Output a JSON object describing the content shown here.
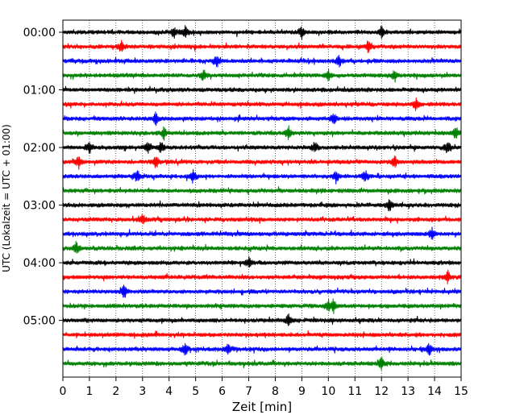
{
  "chart_data": {
    "type": "line",
    "title": "",
    "xlabel": "Zeit  [min]",
    "ylabel": "UTC (Lokalzeit = UTC + 01:00)",
    "xlim": [
      0,
      15
    ],
    "x_ticks": [
      "0",
      "1",
      "2",
      "3",
      "4",
      "5",
      "6",
      "7",
      "8",
      "9",
      "10",
      "11",
      "12",
      "13",
      "14",
      "15"
    ],
    "y_tick_labels": [
      "00:00",
      "01:00",
      "02:00",
      "03:00",
      "04:00",
      "05:00"
    ],
    "row_minutes": 15,
    "rows": 24,
    "grid": "vertical dotted",
    "color_cycle": [
      "#000000",
      "#ff0000",
      "#0000ff",
      "#008000"
    ],
    "traces": [
      {
        "start": "00:00",
        "color": "#000000",
        "events": [
          4.2,
          4.6,
          9.0,
          12.0
        ]
      },
      {
        "start": "00:15",
        "color": "#ff0000",
        "events": [
          2.2,
          11.5
        ]
      },
      {
        "start": "00:30",
        "color": "#0000ff",
        "events": [
          5.8,
          10.4
        ]
      },
      {
        "start": "00:45",
        "color": "#008000",
        "events": [
          5.3,
          10.0,
          12.5
        ]
      },
      {
        "start": "01:00",
        "color": "#000000",
        "events": []
      },
      {
        "start": "01:15",
        "color": "#ff0000",
        "events": [
          13.3
        ]
      },
      {
        "start": "01:30",
        "color": "#0000ff",
        "events": [
          3.5,
          10.2
        ]
      },
      {
        "start": "01:45",
        "color": "#008000",
        "events": [
          3.8,
          8.5,
          14.8
        ]
      },
      {
        "start": "02:00",
        "color": "#000000",
        "events": [
          1.0,
          3.2,
          3.7,
          9.5,
          14.5
        ]
      },
      {
        "start": "02:15",
        "color": "#ff0000",
        "events": [
          0.6,
          3.5,
          12.5
        ]
      },
      {
        "start": "02:30",
        "color": "#0000ff",
        "events": [
          2.8,
          4.9,
          10.3,
          11.4
        ]
      },
      {
        "start": "02:45",
        "color": "#008000",
        "events": []
      },
      {
        "start": "03:00",
        "color": "#000000",
        "events": [
          12.3
        ]
      },
      {
        "start": "03:15",
        "color": "#ff0000",
        "events": [
          3.0
        ]
      },
      {
        "start": "03:30",
        "color": "#0000ff",
        "events": [
          13.9
        ]
      },
      {
        "start": "03:45",
        "color": "#008000",
        "events": [
          0.5
        ]
      },
      {
        "start": "04:00",
        "color": "#000000",
        "events": [
          7.0
        ]
      },
      {
        "start": "04:15",
        "color": "#ff0000",
        "events": [
          14.5
        ]
      },
      {
        "start": "04:30",
        "color": "#0000ff",
        "events": [
          2.3
        ]
      },
      {
        "start": "04:45",
        "color": "#008000",
        "events": [
          10.0,
          10.2
        ]
      },
      {
        "start": "05:00",
        "color": "#000000",
        "events": [
          8.5
        ]
      },
      {
        "start": "05:15",
        "color": "#ff0000",
        "events": []
      },
      {
        "start": "05:30",
        "color": "#0000ff",
        "events": [
          4.6,
          6.2,
          13.8
        ]
      },
      {
        "start": "05:45",
        "color": "#008000",
        "events": [
          12.0
        ]
      }
    ]
  }
}
